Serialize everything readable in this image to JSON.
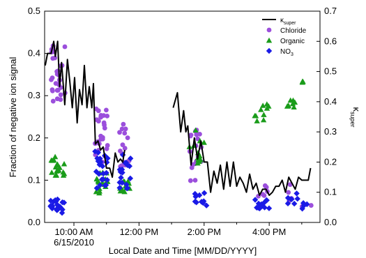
{
  "chart_data": {
    "type": "scatter",
    "xlabel": "Local Date and Time [MM/DD/YYYY]",
    "ylabel_left": "Fraction of negative ion signal",
    "ylabel_right": "κ",
    "ylabel_right_sub": "super",
    "x_range_hours": [
      9.1,
      15.85
    ],
    "x_ticks": [
      {
        "t": 10,
        "label": "10:00 AM",
        "label2": "6/15/2010"
      },
      {
        "t": 12,
        "label": "12:00 PM",
        "label2": ""
      },
      {
        "t": 14,
        "label": "2:00 PM",
        "label2": ""
      },
      {
        "t": 16,
        "label": "4:00 PM",
        "label2": ""
      }
    ],
    "ylim_left": [
      0,
      0.5
    ],
    "y_ticks_left": [
      "0.0",
      "0.1",
      "0.2",
      "0.3",
      "0.4",
      "0.5"
    ],
    "ylim_right": [
      0,
      0.7
    ],
    "y_ticks_right": [
      "0.0",
      "0.1",
      "0.2",
      "0.3",
      "0.4",
      "0.5",
      "0.6",
      "0.7"
    ],
    "legend": [
      {
        "label": "κ",
        "sub": "super",
        "kind": "line",
        "color": "#000000"
      },
      {
        "label": "Chloride",
        "sub": "",
        "kind": "circle",
        "color": "#9b4fdc"
      },
      {
        "label": "Organic",
        "sub": "",
        "kind": "triangle",
        "color": "#1a9c1a"
      },
      {
        "label": "NO",
        "sub": "3",
        "kind": "diamond",
        "color": "#1a1ae6"
      }
    ],
    "series": [
      {
        "name": "κsuper",
        "axis": "right",
        "color": "#000000",
        "segments": [
          [
            [
              9.12,
              0.52
            ],
            [
              9.19,
              0.56
            ],
            [
              9.3,
              0.56
            ],
            [
              9.38,
              0.6
            ],
            [
              9.43,
              0.55
            ],
            [
              9.5,
              0.6
            ],
            [
              9.56,
              0.45
            ],
            [
              9.62,
              0.53
            ],
            [
              9.72,
              0.39
            ],
            [
              9.8,
              0.54
            ],
            [
              9.87,
              0.47
            ],
            [
              9.95,
              0.38
            ],
            [
              10.02,
              0.48
            ],
            [
              10.1,
              0.33
            ],
            [
              10.17,
              0.44
            ],
            [
              10.25,
              0.39
            ],
            [
              10.32,
              0.52
            ],
            [
              10.4,
              0.38
            ],
            [
              10.47,
              0.45
            ],
            [
              10.55,
              0.38
            ],
            [
              10.6,
              0.46
            ],
            [
              10.66,
              0.26
            ],
            [
              10.74,
              0.27
            ],
            [
              10.82,
              0.24
            ],
            [
              10.9,
              0.25
            ],
            [
              11.0,
              0.18
            ],
            [
              11.1,
              0.18
            ],
            [
              11.18,
              0.15
            ],
            [
              11.27,
              0.23
            ],
            [
              11.35,
              0.2
            ],
            [
              11.43,
              0.21
            ],
            [
              11.5,
              0.2
            ],
            [
              11.56,
              0.24
            ]
          ],
          [
            [
              13.05,
              0.38
            ],
            [
              13.18,
              0.43
            ],
            [
              13.28,
              0.3
            ],
            [
              13.37,
              0.37
            ],
            [
              13.44,
              0.3
            ],
            [
              13.5,
              0.32
            ],
            [
              13.6,
              0.19
            ],
            [
              13.7,
              0.28
            ],
            [
              13.8,
              0.21
            ],
            [
              13.9,
              0.27
            ],
            [
              14.0,
              0.2
            ],
            [
              14.1,
              0.2
            ],
            [
              14.2,
              0.1
            ],
            [
              14.3,
              0.17
            ],
            [
              14.4,
              0.13
            ],
            [
              14.5,
              0.19
            ],
            [
              14.6,
              0.11
            ],
            [
              14.7,
              0.2
            ],
            [
              14.8,
              0.12
            ],
            [
              14.9,
              0.2
            ],
            [
              15.0,
              0.12
            ],
            [
              15.1,
              0.15
            ],
            [
              15.2,
              0.13
            ],
            [
              15.3,
              0.1
            ],
            [
              15.4,
              0.16
            ],
            [
              15.5,
              0.11
            ],
            [
              15.6,
              0.13
            ],
            [
              15.7,
              0.09
            ],
            [
              15.8,
              0.11
            ],
            [
              15.9,
              0.11
            ],
            [
              16.0,
              0.09
            ],
            [
              16.1,
              0.1
            ],
            [
              16.2,
              0.12
            ],
            [
              16.3,
              0.12
            ],
            [
              16.4,
              0.14
            ],
            [
              16.5,
              0.1
            ],
            [
              16.6,
              0.15
            ],
            [
              16.7,
              0.13
            ],
            [
              16.8,
              0.11
            ],
            [
              16.9,
              0.15
            ],
            [
              17.0,
              0.14
            ],
            [
              17.1,
              0.14
            ],
            [
              17.2,
              0.14
            ],
            [
              17.27,
              0.18
            ]
          ]
        ],
        "segment_label": "κsuper"
      },
      {
        "name": "Chloride",
        "axis": "left",
        "color": "#9b4fdc",
        "clusters": [
          {
            "t": [
              9.28,
              9.75
            ],
            "y": [
              0.28,
              0.42
            ],
            "n": 30
          },
          {
            "t": [
              10.65,
              11.05
            ],
            "y": [
              0.14,
              0.27
            ],
            "n": 25
          },
          {
            "t": [
              11.4,
              11.75
            ],
            "y": [
              0.13,
              0.24
            ],
            "n": 18
          },
          {
            "t": [
              13.55,
              13.95
            ],
            "y": [
              0.09,
              0.22
            ],
            "n": 18
          },
          {
            "t": [
              15.65,
              15.95
            ],
            "y": [
              0.04,
              0.1
            ],
            "n": 6
          },
          {
            "t": [
              16.55,
              16.75
            ],
            "y": [
              0.05,
              0.09
            ],
            "n": 5
          },
          {
            "t": [
              17.0,
              17.3
            ],
            "y": [
              0.03,
              0.05
            ],
            "n": 3
          }
        ]
      },
      {
        "name": "Organic",
        "axis": "left",
        "color": "#1a9c1a",
        "clusters": [
          {
            "t": [
              9.28,
              9.75
            ],
            "y": [
              0.11,
              0.16
            ],
            "n": 18
          },
          {
            "t": [
              10.65,
              11.05
            ],
            "y": [
              0.06,
              0.12
            ],
            "n": 18
          },
          {
            "t": [
              11.4,
              11.75
            ],
            "y": [
              0.07,
              0.1
            ],
            "n": 12
          },
          {
            "t": [
              13.55,
              14.1
            ],
            "y": [
              0.14,
              0.22
            ],
            "n": 12
          },
          {
            "t": [
              15.55,
              16.0
            ],
            "y": [
              0.24,
              0.28
            ],
            "n": 10
          },
          {
            "t": [
              16.55,
              16.9
            ],
            "y": [
              0.27,
              0.29
            ],
            "n": 8
          },
          {
            "t": [
              17.0,
              17.25
            ],
            "y": [
              0.33,
              0.34
            ],
            "n": 3
          }
        ]
      },
      {
        "name": "NO3",
        "axis": "left",
        "color": "#1a1ae6",
        "clusters": [
          {
            "t": [
              9.28,
              9.75
            ],
            "y": [
              0.02,
              0.06
            ],
            "n": 22
          },
          {
            "t": [
              10.65,
              11.05
            ],
            "y": [
              0.08,
              0.17
            ],
            "n": 22
          },
          {
            "t": [
              11.4,
              11.75
            ],
            "y": [
              0.08,
              0.16
            ],
            "n": 18
          },
          {
            "t": [
              13.55,
              14.1
            ],
            "y": [
              0.04,
              0.07
            ],
            "n": 10
          },
          {
            "t": [
              15.55,
              16.0
            ],
            "y": [
              0.03,
              0.06
            ],
            "n": 14
          },
          {
            "t": [
              16.55,
              16.9
            ],
            "y": [
              0.04,
              0.07
            ],
            "n": 8
          },
          {
            "t": [
              17.0,
              17.25
            ],
            "y": [
              0.03,
              0.05
            ],
            "n": 4
          }
        ]
      }
    ]
  }
}
